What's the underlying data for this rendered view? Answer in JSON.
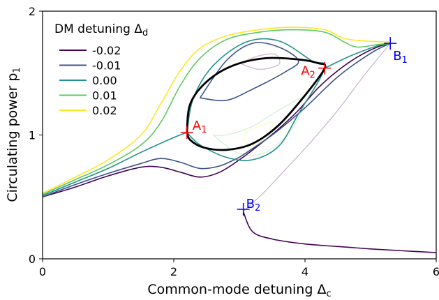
{
  "chart_data": {
    "type": "line",
    "xlabel": "Common-mode detuning Δ",
    "xlabel_sub": "c",
    "ylabel": "Circulating power p",
    "ylabel_sub": "1",
    "xlim": [
      0,
      6
    ],
    "ylim": [
      0,
      2
    ],
    "x_ticks": [
      0,
      2,
      4,
      6
    ],
    "x_tick_labels": [
      "0",
      "2",
      "4",
      "6"
    ],
    "y_ticks": [
      0,
      1,
      2
    ],
    "y_tick_labels": [
      "0",
      "1",
      "2"
    ],
    "grid": false,
    "legend": {
      "title": "DM detuning Δ",
      "title_sub": "d",
      "placement": "top-left"
    },
    "series": [
      {
        "name": "-0.02",
        "color": "#440154",
        "branch_upper": [
          [
            0,
            0.5
          ],
          [
            0.5,
            0.58
          ],
          [
            1,
            0.67
          ],
          [
            1.5,
            0.74
          ],
          [
            1.8,
            0.74
          ],
          [
            2.1,
            0.7
          ],
          [
            2.4,
            0.66
          ],
          [
            2.7,
            0.7
          ],
          [
            3,
            0.8
          ],
          [
            3.3,
            0.92
          ],
          [
            3.6,
            1.05
          ],
          [
            3.9,
            1.2
          ],
          [
            4.2,
            1.38
          ],
          [
            4.5,
            1.52
          ],
          [
            4.8,
            1.63
          ],
          [
            5.1,
            1.71
          ],
          [
            5.3,
            1.74
          ]
        ],
        "branch_middle": [
          [
            5.3,
            1.74
          ],
          [
            4.9,
            1.48
          ],
          [
            4.5,
            1.2
          ],
          [
            4.1,
            0.95
          ],
          [
            3.7,
            0.72
          ],
          [
            3.4,
            0.55
          ],
          [
            3.2,
            0.45
          ],
          [
            3.06,
            0.38
          ]
        ],
        "branch_lower": [
          [
            3.06,
            0.38
          ],
          [
            3.2,
            0.22
          ],
          [
            3.5,
            0.16
          ],
          [
            4,
            0.12
          ],
          [
            4.5,
            0.1
          ],
          [
            5,
            0.08
          ],
          [
            5.5,
            0.065
          ],
          [
            6,
            0.05
          ]
        ],
        "isola": [
          [
            3.0,
            1.58
          ],
          [
            3.3,
            1.64
          ],
          [
            3.55,
            1.65
          ],
          [
            3.6,
            1.57
          ],
          [
            3.3,
            1.53
          ],
          [
            3.0,
            1.58
          ]
        ]
      },
      {
        "name": "-0.01",
        "color": "#3b528b",
        "branch_upper": [
          [
            0,
            0.5
          ],
          [
            0.5,
            0.6
          ],
          [
            1,
            0.69
          ],
          [
            1.5,
            0.77
          ],
          [
            1.8,
            0.81
          ],
          [
            2.1,
            0.78
          ],
          [
            2.4,
            0.73
          ],
          [
            2.7,
            0.75
          ],
          [
            3.0,
            0.82
          ]
        ],
        "loop": [
          [
            2.4,
            1.3
          ],
          [
            2.8,
            1.6
          ],
          [
            3.2,
            1.74
          ],
          [
            3.6,
            1.71
          ],
          [
            3.9,
            1.6
          ],
          [
            3.7,
            1.51
          ],
          [
            3.2,
            1.37
          ],
          [
            2.8,
            1.28
          ],
          [
            2.4,
            1.3
          ]
        ],
        "branch_tail": [
          [
            3.0,
            0.82
          ],
          [
            3.5,
            1.0
          ],
          [
            4.0,
            1.22
          ],
          [
            4.5,
            1.47
          ],
          [
            5.0,
            1.66
          ],
          [
            5.3,
            1.74
          ]
        ]
      },
      {
        "name": "0.00",
        "color": "#21918c",
        "branch_upper": [
          [
            0,
            0.51
          ],
          [
            0.5,
            0.62
          ],
          [
            1,
            0.73
          ],
          [
            1.5,
            0.86
          ],
          [
            2.0,
            0.98
          ],
          [
            2.2,
            1.02
          ]
        ],
        "loop": [
          [
            2.2,
            1.02
          ],
          [
            2.3,
            1.3
          ],
          [
            2.6,
            1.56
          ],
          [
            3.1,
            1.75
          ],
          [
            3.6,
            1.76
          ],
          [
            4.1,
            1.6
          ],
          [
            4.3,
            1.54
          ],
          [
            3.9,
            1.17
          ],
          [
            3.6,
            0.91
          ],
          [
            3.2,
            0.8
          ],
          [
            2.8,
            0.82
          ],
          [
            2.4,
            0.92
          ],
          [
            2.2,
            1.02
          ]
        ],
        "branch_tail": [
          [
            4.3,
            1.54
          ],
          [
            4.7,
            1.64
          ],
          [
            5.1,
            1.72
          ],
          [
            5.3,
            1.74
          ]
        ]
      },
      {
        "name": "0.01",
        "color": "#5ec962",
        "branch_upper": [
          [
            0,
            0.52
          ],
          [
            0.5,
            0.64
          ],
          [
            1,
            0.76
          ],
          [
            1.5,
            0.92
          ],
          [
            1.8,
            1.1
          ],
          [
            2.1,
            1.4
          ],
          [
            2.4,
            1.62
          ],
          [
            2.8,
            1.77
          ],
          [
            3.3,
            1.83
          ],
          [
            3.8,
            1.85
          ],
          [
            4.3,
            1.83
          ],
          [
            4.6,
            1.75
          ],
          [
            4.8,
            1.71
          ],
          [
            5.1,
            1.73
          ],
          [
            5.3,
            1.74
          ]
        ],
        "isola": [
          [
            2.6,
            1.0
          ],
          [
            3.0,
            0.85
          ],
          [
            3.4,
            0.86
          ],
          [
            3.8,
            1.05
          ],
          [
            4.0,
            1.3
          ],
          [
            3.6,
            1.2
          ],
          [
            3.2,
            1.07
          ],
          [
            2.8,
            1.0
          ],
          [
            2.6,
            1.0
          ]
        ]
      },
      {
        "name": "0.02",
        "color": "#fde725",
        "branch_upper": [
          [
            0,
            0.53
          ],
          [
            0.5,
            0.66
          ],
          [
            1,
            0.8
          ],
          [
            1.5,
            1.0
          ],
          [
            1.8,
            1.25
          ],
          [
            2.1,
            1.52
          ],
          [
            2.4,
            1.7
          ],
          [
            2.8,
            1.8
          ],
          [
            3.3,
            1.85
          ],
          [
            3.8,
            1.87
          ],
          [
            4.3,
            1.85
          ],
          [
            4.6,
            1.78
          ],
          [
            4.9,
            1.76
          ],
          [
            5.3,
            1.75
          ]
        ],
        "isola": [
          [
            3.05,
            0.96
          ],
          [
            3.2,
            0.92
          ],
          [
            3.4,
            0.98
          ],
          [
            3.5,
            1.1
          ],
          [
            3.3,
            1.07
          ],
          [
            3.1,
            1.02
          ],
          [
            3.05,
            0.96
          ]
        ]
      }
    ],
    "black_ellipse": {
      "color": "#000000",
      "points": [
        [
          2.2,
          1.02
        ],
        [
          2.25,
          1.25
        ],
        [
          2.5,
          1.43
        ],
        [
          2.9,
          1.56
        ],
        [
          3.4,
          1.62
        ],
        [
          3.9,
          1.61
        ],
        [
          4.2,
          1.58
        ],
        [
          4.3,
          1.54
        ],
        [
          4.0,
          1.32
        ],
        [
          3.6,
          1.08
        ],
        [
          3.2,
          0.93
        ],
        [
          2.8,
          0.88
        ],
        [
          2.45,
          0.9
        ],
        [
          2.25,
          0.96
        ],
        [
          2.2,
          1.02
        ]
      ]
    },
    "annotations": [
      {
        "label": "A",
        "sub": "1",
        "x": 2.2,
        "y": 1.02,
        "color": "#ff0000"
      },
      {
        "label": "A",
        "sub": "2",
        "x": 4.3,
        "y": 1.54,
        "color": "#ff0000"
      },
      {
        "label": "B",
        "sub": "1",
        "x": 5.3,
        "y": 1.74,
        "color": "#0000ff"
      },
      {
        "label": "B",
        "sub": "2",
        "x": 3.06,
        "y": 0.4,
        "color": "#0000ff"
      }
    ]
  }
}
